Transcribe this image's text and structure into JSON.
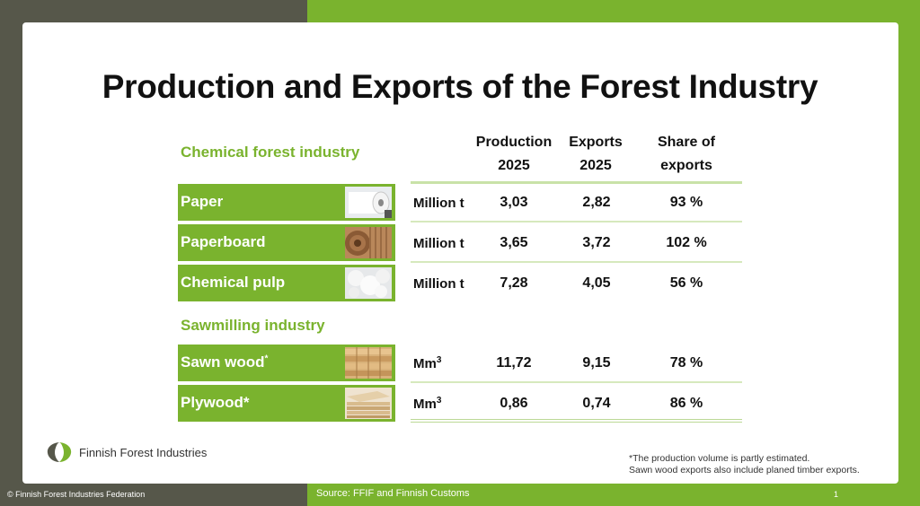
{
  "title": "Production and Exports of the Forest Industry",
  "sections": {
    "chemical": "Chemical forest industry",
    "sawmilling": "Sawmilling industry"
  },
  "columns": {
    "production": [
      "Production",
      "2025"
    ],
    "exports": [
      "Exports",
      "2025"
    ],
    "share": [
      "Share of",
      "exports"
    ]
  },
  "rows": [
    {
      "label": "Paper",
      "label_mark": "",
      "unit": "Million t",
      "unit_sup": "",
      "production": "3,03",
      "exports": "2,82",
      "share": "93 %",
      "thumb_icon": "paper-roll-icon"
    },
    {
      "label": "Paperboard",
      "label_mark": "",
      "unit": "Million t",
      "unit_sup": "",
      "production": "3,65",
      "exports": "3,72",
      "share": "102 %",
      "thumb_icon": "cardboard-roll-icon"
    },
    {
      "label": "Chemical pulp",
      "label_mark": "",
      "unit": "Million t",
      "unit_sup": "",
      "production": "7,28",
      "exports": "4,05",
      "share": "56 %",
      "thumb_icon": "pulp-icon"
    },
    {
      "label": "Sawn wood",
      "label_mark": "*",
      "unit": "Mm",
      "unit_sup": "3",
      "production": "11,72",
      "exports": "9,15",
      "share": "78 %",
      "thumb_icon": "lumber-stack-icon"
    },
    {
      "label": "Plywood*",
      "label_mark": "",
      "unit": "Mm",
      "unit_sup": "3",
      "production": "0,86",
      "exports": "0,74",
      "share": "86 %",
      "thumb_icon": "plywood-stack-icon"
    }
  ],
  "logo_text": "Finnish Forest Industries",
  "footnote": [
    "*The production volume is partly estimated.",
    "Sawn wood exports also include planed timber exports."
  ],
  "footer": {
    "copyright": "© Finnish Forest Industries Federation",
    "source": "Source: FFIF and Finnish Customs",
    "page": "1"
  },
  "colors": {
    "accent": "#7ab32e",
    "dark": "#56574a"
  }
}
